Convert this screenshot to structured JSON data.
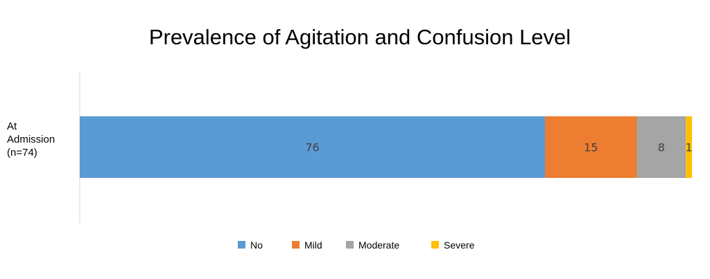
{
  "chart_data": {
    "type": "bar",
    "orientation": "horizontal",
    "stacked": true,
    "title": "Prevalence of Agitation and Confusion Level",
    "categories": [
      "At Admission (n=74)"
    ],
    "category_label_lines": [
      [
        "At",
        "Admission",
        "(n=74)"
      ]
    ],
    "series": [
      {
        "name": "No",
        "values": [
          76
        ],
        "color": "#5B9BD5"
      },
      {
        "name": "Mild",
        "values": [
          15
        ],
        "color": "#ED7D31"
      },
      {
        "name": "Moderate",
        "values": [
          8
        ],
        "color": "#A5A5A5"
      },
      {
        "name": "Severe",
        "values": [
          1
        ],
        "color": "#FFC000"
      }
    ],
    "xlim": [
      0,
      100
    ],
    "grid": false,
    "legend_position": "bottom"
  }
}
